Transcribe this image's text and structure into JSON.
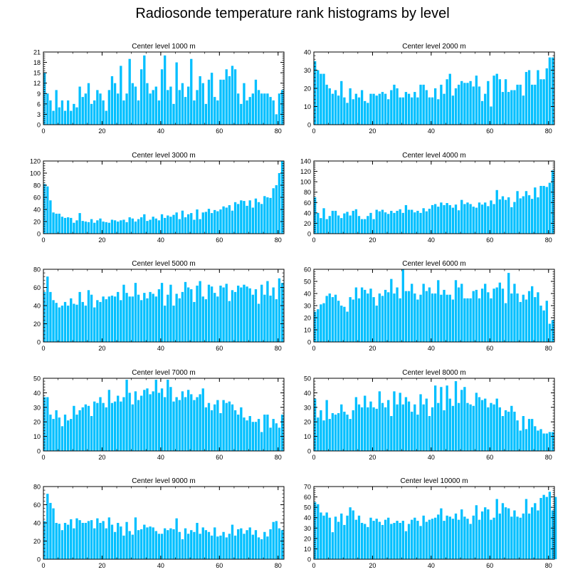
{
  "title": "Radiosonde temperature rank histograms by level",
  "bar_color": "#00bfff",
  "chart_data": [
    {
      "type": "bar",
      "title": "Center level 1000 m",
      "ylim": [
        0,
        21
      ],
      "yticks": [
        0,
        3,
        6,
        9,
        12,
        15,
        18,
        21
      ],
      "xlim": [
        0,
        82
      ],
      "xticks": [
        0,
        20,
        40,
        60,
        80
      ],
      "values": [
        15,
        9,
        7,
        4,
        10,
        5,
        7,
        4,
        7,
        4,
        6,
        5,
        11,
        8,
        9,
        12,
        6,
        7,
        10,
        9,
        7,
        4,
        10,
        14,
        12,
        9,
        17,
        7,
        9,
        19,
        12,
        11,
        7,
        16,
        20,
        12,
        9,
        10,
        11,
        7,
        16,
        20,
        10,
        11,
        6,
        18,
        10,
        12,
        8,
        11,
        19,
        7,
        10,
        14,
        12,
        6,
        13,
        15,
        8,
        7,
        13,
        13,
        16,
        14,
        17,
        16,
        9,
        6,
        12,
        7,
        8,
        9,
        13,
        10,
        9,
        9,
        9,
        8,
        7,
        3,
        9,
        10
      ]
    },
    {
      "type": "bar",
      "title": "Center level 2000 m",
      "ylim": [
        0,
        40
      ],
      "yticks": [
        0,
        10,
        20,
        30,
        40
      ],
      "xlim": [
        0,
        82
      ],
      "xticks": [
        0,
        20,
        40,
        60,
        80
      ],
      "values": [
        35,
        30,
        28,
        28,
        22,
        20,
        17,
        19,
        16,
        24,
        15,
        12,
        20,
        14,
        17,
        15,
        19,
        13,
        12,
        17,
        17,
        16,
        17,
        18,
        17,
        14,
        19,
        22,
        20,
        15,
        15,
        18,
        17,
        15,
        18,
        15,
        22,
        22,
        19,
        15,
        15,
        20,
        14,
        22,
        17,
        25,
        28,
        16,
        20,
        22,
        24,
        23,
        23,
        24,
        21,
        27,
        21,
        13,
        17,
        24,
        10,
        27,
        28,
        25,
        18,
        25,
        18,
        19,
        19,
        22,
        22,
        16,
        29,
        30,
        22,
        22,
        30,
        25,
        25,
        31,
        37,
        37
      ]
    },
    {
      "type": "bar",
      "title": "Center level 3000 m",
      "ylim": [
        0,
        120
      ],
      "yticks": [
        0,
        20,
        40,
        60,
        80,
        100,
        120
      ],
      "xlim": [
        0,
        82
      ],
      "xticks": [
        0,
        20,
        40,
        60,
        80
      ],
      "values": [
        82,
        78,
        55,
        35,
        33,
        33,
        28,
        26,
        27,
        26,
        18,
        22,
        34,
        21,
        20,
        19,
        24,
        18,
        22,
        25,
        20,
        19,
        18,
        23,
        22,
        20,
        22,
        23,
        19,
        27,
        25,
        20,
        24,
        27,
        32,
        21,
        23,
        28,
        25,
        22,
        32,
        26,
        30,
        28,
        31,
        35,
        24,
        38,
        27,
        32,
        34,
        23,
        40,
        24,
        35,
        36,
        41,
        34,
        39,
        37,
        40,
        45,
        43,
        47,
        38,
        52,
        49,
        55,
        54,
        46,
        55,
        43,
        58,
        52,
        49,
        62,
        60,
        59,
        75,
        80,
        100,
        120
      ]
    },
    {
      "type": "bar",
      "title": "Center level 4000 m",
      "ylim": [
        0,
        140
      ],
      "yticks": [
        0,
        20,
        40,
        60,
        80,
        100,
        120,
        140
      ],
      "xlim": [
        0,
        82
      ],
      "xticks": [
        0,
        20,
        40,
        60,
        80
      ],
      "values": [
        70,
        40,
        30,
        49,
        28,
        34,
        44,
        44,
        35,
        30,
        39,
        42,
        35,
        44,
        47,
        34,
        28,
        28,
        34,
        40,
        28,
        46,
        43,
        46,
        41,
        38,
        44,
        40,
        44,
        47,
        40,
        55,
        46,
        46,
        41,
        44,
        40,
        49,
        43,
        48,
        55,
        57,
        52,
        60,
        55,
        59,
        55,
        50,
        56,
        45,
        65,
        57,
        60,
        57,
        52,
        50,
        60,
        56,
        60,
        53,
        64,
        57,
        84,
        66,
        72,
        65,
        70,
        51,
        61,
        82,
        68,
        72,
        82,
        74,
        67,
        89,
        70,
        92,
        92,
        90,
        98,
        122
      ]
    },
    {
      "type": "bar",
      "title": "Center level 5000 m",
      "ylim": [
        0,
        80
      ],
      "yticks": [
        0,
        20,
        40,
        60,
        80
      ],
      "xlim": [
        0,
        82
      ],
      "xticks": [
        0,
        20,
        40,
        60,
        80
      ],
      "values": [
        55,
        72,
        55,
        46,
        43,
        38,
        40,
        44,
        40,
        48,
        42,
        41,
        55,
        44,
        40,
        57,
        52,
        38,
        46,
        44,
        50,
        47,
        50,
        51,
        50,
        55,
        46,
        63,
        54,
        50,
        50,
        65,
        52,
        46,
        54,
        48,
        55,
        53,
        50,
        58,
        65,
        40,
        52,
        63,
        40,
        53,
        48,
        55,
        66,
        60,
        58,
        44,
        62,
        67,
        50,
        47,
        63,
        61,
        54,
        50,
        62,
        60,
        64,
        45,
        57,
        55,
        62,
        60,
        63,
        61,
        59,
        52,
        58,
        42,
        63,
        52,
        67,
        51,
        60,
        47,
        70,
        65
      ]
    },
    {
      "type": "bar",
      "title": "Center level 6000 m",
      "ylim": [
        0,
        60
      ],
      "yticks": [
        0,
        10,
        20,
        30,
        40,
        50,
        60
      ],
      "xlim": [
        0,
        82
      ],
      "xticks": [
        0,
        20,
        40,
        60,
        80
      ],
      "values": [
        25,
        27,
        31,
        32,
        38,
        40,
        37,
        39,
        34,
        30,
        29,
        25,
        37,
        35,
        45,
        36,
        45,
        43,
        40,
        44,
        37,
        30,
        40,
        38,
        43,
        41,
        52,
        40,
        45,
        36,
        60,
        42,
        42,
        48,
        40,
        35,
        39,
        48,
        42,
        45,
        40,
        40,
        51,
        39,
        43,
        39,
        39,
        35,
        51,
        45,
        48,
        36,
        36,
        36,
        42,
        43,
        36,
        44,
        48,
        41,
        36,
        44,
        45,
        49,
        44,
        32,
        57,
        40,
        48,
        40,
        33,
        39,
        35,
        42,
        46,
        37,
        41,
        30,
        26,
        34,
        15,
        18
      ]
    },
    {
      "type": "bar",
      "title": "Center level 7000 m",
      "ylim": [
        0,
        50
      ],
      "yticks": [
        0,
        10,
        20,
        30,
        40,
        50
      ],
      "xlim": [
        0,
        82
      ],
      "xticks": [
        0,
        20,
        40,
        60,
        80
      ],
      "values": [
        37,
        37,
        25,
        22,
        28,
        23,
        17,
        25,
        21,
        22,
        31,
        25,
        28,
        30,
        32,
        31,
        24,
        34,
        33,
        37,
        33,
        30,
        42,
        33,
        34,
        38,
        34,
        37,
        49,
        40,
        32,
        41,
        35,
        38,
        42,
        43,
        39,
        41,
        49,
        40,
        43,
        37,
        49,
        44,
        34,
        37,
        35,
        41,
        37,
        42,
        39,
        35,
        37,
        39,
        43,
        30,
        33,
        28,
        32,
        35,
        26,
        35,
        33,
        34,
        32,
        28,
        25,
        30,
        23,
        21,
        24,
        20,
        20,
        22,
        13,
        25,
        25,
        16,
        22,
        19,
        16,
        25
      ]
    },
    {
      "type": "bar",
      "title": "Center level 8000 m",
      "ylim": [
        0,
        50
      ],
      "yticks": [
        0,
        10,
        20,
        30,
        40,
        50
      ],
      "xlim": [
        0,
        82
      ],
      "xticks": [
        0,
        20,
        40,
        60,
        80
      ],
      "values": [
        36,
        23,
        28,
        21,
        35,
        22,
        26,
        25,
        26,
        32,
        27,
        25,
        22,
        28,
        37,
        32,
        30,
        38,
        30,
        34,
        30,
        29,
        41,
        33,
        30,
        35,
        24,
        41,
        32,
        40,
        32,
        37,
        34,
        27,
        32,
        25,
        39,
        32,
        36,
        24,
        30,
        45,
        33,
        44,
        28,
        45,
        36,
        31,
        48,
        33,
        42,
        44,
        33,
        32,
        31,
        40,
        37,
        35,
        36,
        30,
        33,
        32,
        36,
        30,
        24,
        28,
        27,
        31,
        27,
        21,
        14,
        24,
        15,
        22,
        22,
        17,
        14,
        15,
        12,
        12,
        13,
        13
      ]
    },
    {
      "type": "bar",
      "title": "Center level 9000 m",
      "ylim": [
        0,
        80
      ],
      "yticks": [
        0,
        20,
        40,
        60,
        80
      ],
      "xlim": [
        0,
        82
      ],
      "xticks": [
        0,
        20,
        40,
        60,
        80
      ],
      "values": [
        42,
        72,
        62,
        56,
        40,
        39,
        32,
        40,
        38,
        44,
        34,
        45,
        43,
        40,
        40,
        42,
        43,
        34,
        45,
        40,
        42,
        34,
        46,
        38,
        30,
        40,
        36,
        26,
        41,
        31,
        27,
        46,
        32,
        33,
        38,
        35,
        36,
        35,
        31,
        28,
        28,
        34,
        32,
        34,
        33,
        45,
        30,
        22,
        34,
        28,
        32,
        30,
        40,
        28,
        35,
        32,
        30,
        26,
        35,
        25,
        26,
        30,
        24,
        28,
        38,
        26,
        33,
        34,
        28,
        32,
        35,
        27,
        32,
        24,
        22,
        30,
        25,
        33,
        41,
        42,
        34,
        32
      ]
    },
    {
      "type": "bar",
      "title": "Center level 10000 m",
      "ylim": [
        0,
        70
      ],
      "yticks": [
        0,
        10,
        20,
        30,
        40,
        50,
        60,
        70
      ],
      "xlim": [
        0,
        82
      ],
      "xticks": [
        0,
        20,
        40,
        60,
        80
      ],
      "values": [
        55,
        53,
        45,
        42,
        45,
        40,
        26,
        41,
        36,
        44,
        33,
        42,
        50,
        47,
        38,
        42,
        35,
        34,
        31,
        40,
        37,
        39,
        36,
        33,
        38,
        40,
        34,
        35,
        37,
        35,
        37,
        27,
        34,
        38,
        40,
        37,
        32,
        42,
        36,
        38,
        39,
        40,
        43,
        49,
        37,
        42,
        41,
        39,
        44,
        38,
        48,
        41,
        39,
        34,
        42,
        52,
        38,
        46,
        50,
        48,
        38,
        40,
        58,
        44,
        54,
        50,
        49,
        41,
        47,
        41,
        40,
        44,
        58,
        44,
        50,
        54,
        47,
        59,
        62,
        60,
        65,
        47,
        60
      ]
    }
  ]
}
